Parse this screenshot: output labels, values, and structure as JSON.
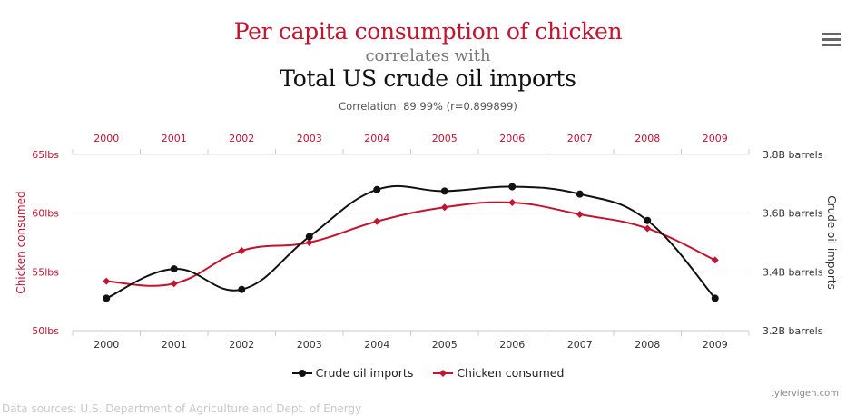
{
  "chart_data": {
    "type": "line",
    "title": "Per capita consumption of chicken",
    "subtitle": "correlates with",
    "title2": "Total US crude oil imports",
    "correlation_text": "Correlation: 89.99% (r=0.899899)",
    "categories": [
      "2000",
      "2001",
      "2002",
      "2003",
      "2004",
      "2005",
      "2006",
      "2007",
      "2008",
      "2009"
    ],
    "left_axis": {
      "label": "Chicken consumed",
      "ylim": [
        50,
        65
      ],
      "ticks": [
        50,
        55,
        60,
        65
      ],
      "tick_labels": [
        "50lbs",
        "55lbs",
        "60lbs",
        "65lbs"
      ]
    },
    "right_axis": {
      "label": "Crude oil imports",
      "ylim": [
        3.2,
        3.8
      ],
      "ticks": [
        3.2,
        3.4,
        3.6,
        3.8
      ],
      "tick_labels": [
        "3.2B barrels",
        "3.4B barrels",
        "3.6B barrels",
        "3.8B barrels"
      ]
    },
    "series": [
      {
        "name": "Crude oil imports",
        "axis": "right",
        "color": "#111111",
        "marker": "circle",
        "values": [
          3.31,
          3.41,
          3.34,
          3.52,
          3.68,
          3.675,
          3.69,
          3.665,
          3.575,
          3.31
        ]
      },
      {
        "name": "Chicken consumed",
        "axis": "left",
        "color": "#c2142f",
        "marker": "diamond",
        "values": [
          54.2,
          54.0,
          56.8,
          57.5,
          59.3,
          60.5,
          60.9,
          59.9,
          58.7,
          56.0
        ]
      }
    ],
    "grid": true,
    "legend_position": "bottom-center"
  },
  "menu_icon": "hamburger-menu-icon",
  "credit": "tylervigen.com",
  "sources": "Data sources: U.S. Department of Agriculture and Dept. of Energy"
}
